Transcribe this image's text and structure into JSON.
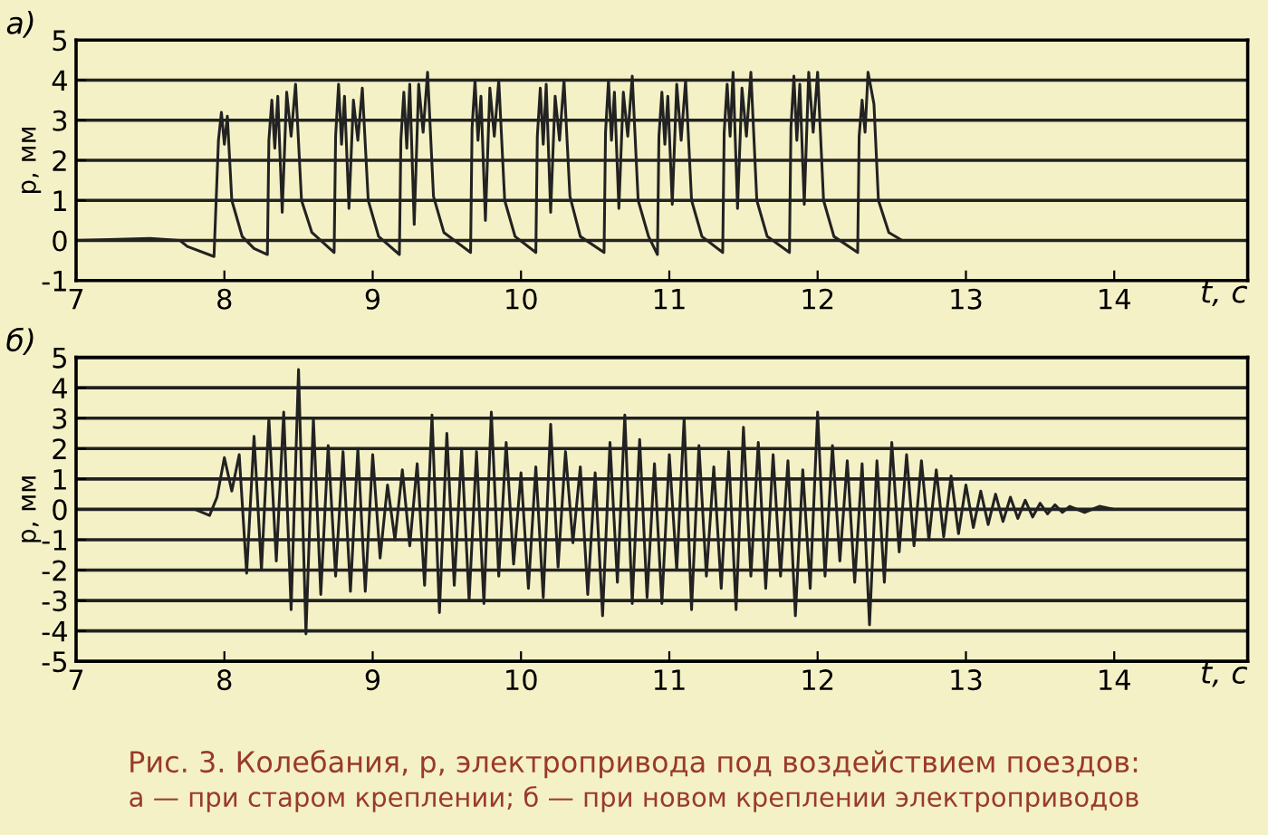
{
  "chart_data": [
    {
      "type": "line",
      "title": "а)",
      "xlabel": "t, с",
      "ylabel": "p, мм",
      "xlim": [
        7,
        14.9
      ],
      "ylim": [
        -1,
        5
      ],
      "xticks": [
        7,
        8,
        9,
        10,
        11,
        12,
        13,
        14
      ],
      "yticks": [
        -1,
        0,
        1,
        2,
        3,
        4,
        5
      ],
      "grid": "y",
      "series": [
        {
          "color": "#222222",
          "x": [
            7.0,
            7.5,
            7.7,
            7.75,
            7.93,
            7.96,
            7.98,
            8.0,
            8.02,
            8.05,
            8.12,
            8.2,
            8.29,
            8.3,
            8.32,
            8.34,
            8.36,
            8.39,
            8.42,
            8.45,
            8.48,
            8.52,
            8.59,
            8.74,
            8.75,
            8.77,
            8.79,
            8.81,
            8.84,
            8.87,
            8.9,
            8.93,
            8.97,
            9.04,
            9.18,
            9.19,
            9.21,
            9.23,
            9.25,
            9.28,
            9.31,
            9.34,
            9.37,
            9.41,
            9.48,
            9.66,
            9.67,
            9.69,
            9.71,
            9.73,
            9.76,
            9.79,
            9.82,
            9.85,
            9.89,
            9.96,
            10.1,
            10.11,
            10.13,
            10.15,
            10.17,
            10.2,
            10.23,
            10.26,
            10.29,
            10.33,
            10.4,
            10.56,
            10.57,
            10.59,
            10.61,
            10.63,
            10.66,
            10.69,
            10.72,
            10.75,
            10.79,
            10.86,
            10.92,
            10.93,
            10.95,
            10.97,
            10.99,
            11.02,
            11.05,
            11.08,
            11.11,
            11.15,
            11.22,
            11.36,
            11.37,
            11.39,
            11.41,
            11.43,
            11.46,
            11.49,
            11.52,
            11.55,
            11.59,
            11.66,
            11.81,
            11.82,
            11.84,
            11.86,
            11.88,
            11.91,
            11.94,
            11.97,
            12.0,
            12.04,
            12.11,
            12.27,
            12.28,
            12.3,
            12.32,
            12.34,
            12.38,
            12.41,
            12.48,
            12.57,
            13.5,
            14.9
          ],
          "values": [
            0.0,
            0.05,
            0.0,
            -0.15,
            -0.4,
            2.5,
            3.2,
            2.4,
            3.1,
            1.0,
            0.1,
            -0.2,
            -0.35,
            2.5,
            3.5,
            2.3,
            3.6,
            0.7,
            3.7,
            2.6,
            3.9,
            1.0,
            0.2,
            -0.3,
            2.6,
            3.9,
            2.4,
            3.6,
            0.8,
            3.5,
            2.5,
            3.8,
            1.0,
            0.1,
            -0.35,
            2.5,
            3.7,
            2.3,
            3.9,
            0.4,
            3.9,
            2.7,
            4.2,
            1.1,
            0.2,
            -0.3,
            2.8,
            4.0,
            2.5,
            3.6,
            0.5,
            3.8,
            2.6,
            4.0,
            1.0,
            0.1,
            -0.3,
            2.6,
            3.8,
            2.4,
            3.9,
            0.7,
            3.6,
            2.5,
            4.0,
            1.1,
            0.1,
            -0.3,
            2.7,
            4.0,
            2.5,
            3.7,
            0.8,
            3.7,
            2.6,
            4.1,
            1.0,
            0.1,
            -0.35,
            2.6,
            3.7,
            2.4,
            3.6,
            0.9,
            3.9,
            2.5,
            4.0,
            1.0,
            0.1,
            -0.3,
            2.7,
            3.9,
            2.6,
            4.2,
            0.8,
            3.8,
            2.6,
            4.2,
            1.0,
            0.1,
            -0.3,
            2.8,
            4.1,
            2.5,
            3.9,
            0.9,
            4.2,
            2.7,
            4.2,
            1.0,
            0.1,
            -0.3,
            2.6,
            3.5,
            2.7,
            4.2,
            3.4,
            1.0,
            0.2,
            0.0,
            0.0,
            0.0
          ]
        }
      ]
    },
    {
      "type": "line",
      "title": "б)",
      "xlabel": "t, с",
      "ylabel": "p, мм",
      "xlim": [
        7,
        14.9
      ],
      "ylim": [
        -5,
        5
      ],
      "xticks": [
        7,
        8,
        9,
        10,
        11,
        12,
        13,
        14
      ],
      "yticks": [
        -5,
        -4,
        -3,
        -2,
        -1,
        0,
        1,
        2,
        3,
        4,
        5
      ],
      "grid": "y",
      "annotations": [
        "Рис. 3. Колебания, p, электропривода под воздействием поездов:",
        "а — при старом креплении; б — при новом креплении электроприводов"
      ],
      "series": [
        {
          "color": "#222222",
          "x": [
            7.0,
            7.8,
            7.9,
            7.95,
            8.0,
            8.05,
            8.1,
            8.15,
            8.2,
            8.25,
            8.3,
            8.35,
            8.4,
            8.45,
            8.5,
            8.55,
            8.6,
            8.65,
            8.7,
            8.75,
            8.8,
            8.85,
            8.9,
            8.95,
            9.0,
            9.05,
            9.1,
            9.15,
            9.2,
            9.25,
            9.3,
            9.35,
            9.4,
            9.45,
            9.5,
            9.55,
            9.6,
            9.65,
            9.7,
            9.75,
            9.8,
            9.85,
            9.9,
            9.95,
            10.0,
            10.05,
            10.1,
            10.15,
            10.2,
            10.25,
            10.3,
            10.35,
            10.4,
            10.45,
            10.5,
            10.55,
            10.6,
            10.65,
            10.7,
            10.75,
            10.8,
            10.85,
            10.9,
            10.95,
            11.0,
            11.05,
            11.1,
            11.15,
            11.2,
            11.25,
            11.3,
            11.35,
            11.4,
            11.45,
            11.5,
            11.55,
            11.6,
            11.65,
            11.7,
            11.75,
            11.8,
            11.85,
            11.9,
            11.95,
            12.0,
            12.05,
            12.1,
            12.15,
            12.2,
            12.25,
            12.3,
            12.35,
            12.4,
            12.45,
            12.5,
            12.55,
            12.6,
            12.65,
            12.7,
            12.75,
            12.8,
            12.85,
            12.9,
            12.95,
            13.0,
            13.05,
            13.1,
            13.15,
            13.2,
            13.25,
            13.3,
            13.35,
            13.4,
            13.45,
            13.5,
            13.55,
            13.6,
            13.65,
            13.7,
            13.8,
            13.9,
            14.0,
            14.9
          ],
          "values": [
            0.0,
            0.0,
            -0.2,
            0.4,
            1.7,
            0.6,
            1.8,
            -2.1,
            2.4,
            -2.0,
            3.0,
            -1.7,
            3.2,
            -3.3,
            4.6,
            -4.1,
            3.0,
            -2.8,
            2.1,
            -2.2,
            1.9,
            -2.7,
            2.0,
            -2.7,
            1.8,
            -1.6,
            0.8,
            -1.0,
            1.3,
            -1.2,
            1.5,
            -2.5,
            3.1,
            -3.4,
            2.5,
            -2.5,
            2.0,
            -3.0,
            1.9,
            -3.1,
            3.2,
            -2.2,
            2.2,
            -1.8,
            1.2,
            -2.6,
            1.4,
            -2.9,
            2.8,
            -1.9,
            1.9,
            -1.1,
            1.4,
            -2.8,
            1.2,
            -3.5,
            2.2,
            -2.4,
            3.1,
            -3.1,
            2.3,
            -2.9,
            1.5,
            -3.1,
            1.8,
            -2.0,
            3.0,
            -3.3,
            2.1,
            -2.2,
            1.4,
            -2.6,
            1.9,
            -3.3,
            2.7,
            -2.2,
            2.2,
            -2.6,
            1.8,
            -2.2,
            1.6,
            -3.5,
            1.3,
            -2.6,
            3.2,
            -2.2,
            2.1,
            -1.7,
            1.6,
            -2.4,
            1.5,
            -3.8,
            1.6,
            -2.4,
            2.2,
            -1.4,
            1.8,
            -1.2,
            1.6,
            -1.0,
            1.3,
            -0.9,
            1.1,
            -0.8,
            0.8,
            -0.6,
            0.6,
            -0.5,
            0.5,
            -0.4,
            0.4,
            -0.3,
            0.3,
            -0.25,
            0.2,
            -0.15,
            0.15,
            -0.1,
            0.1,
            -0.1,
            0.1,
            0.0,
            0.0
          ]
        }
      ]
    }
  ]
}
